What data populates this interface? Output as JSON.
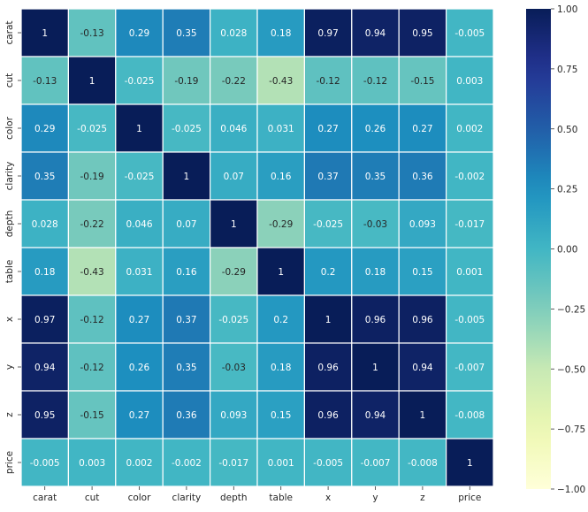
{
  "chart_data": {
    "type": "heatmap",
    "title": "",
    "xlabel": "",
    "ylabel": "",
    "columns": [
      "carat",
      "cut",
      "color",
      "clarity",
      "depth",
      "table",
      "x",
      "y",
      "z",
      "price"
    ],
    "rows": [
      "carat",
      "cut",
      "color",
      "clarity",
      "depth",
      "table",
      "x",
      "y",
      "z",
      "price"
    ],
    "values": [
      [
        "1",
        "-0.13",
        "0.29",
        "0.35",
        "0.028",
        "0.18",
        "0.97",
        "0.94",
        "0.95",
        "-0.005"
      ],
      [
        "-0.13",
        "1",
        "-0.025",
        "-0.19",
        "-0.22",
        "-0.43",
        "-0.12",
        "-0.12",
        "-0.15",
        "0.003"
      ],
      [
        "0.29",
        "-0.025",
        "1",
        "-0.025",
        "0.046",
        "0.031",
        "0.27",
        "0.26",
        "0.27",
        "0.002"
      ],
      [
        "0.35",
        "-0.19",
        "-0.025",
        "1",
        "0.07",
        "0.16",
        "0.37",
        "0.35",
        "0.36",
        "-0.002"
      ],
      [
        "0.028",
        "-0.22",
        "0.046",
        "0.07",
        "1",
        "-0.29",
        "-0.025",
        "-0.03",
        "0.093",
        "-0.017"
      ],
      [
        "0.18",
        "-0.43",
        "0.031",
        "0.16",
        "-0.29",
        "1",
        "0.2",
        "0.18",
        "0.15",
        "0.001"
      ],
      [
        "0.97",
        "-0.12",
        "0.27",
        "0.37",
        "-0.025",
        "0.2",
        "1",
        "0.96",
        "0.96",
        "-0.005"
      ],
      [
        "0.94",
        "-0.12",
        "0.26",
        "0.35",
        "-0.03",
        "0.18",
        "0.96",
        "1",
        "0.94",
        "-0.007"
      ],
      [
        "0.95",
        "-0.15",
        "0.27",
        "0.36",
        "0.093",
        "0.15",
        "0.96",
        "0.94",
        "1",
        "-0.008"
      ],
      [
        "-0.005",
        "0.003",
        "0.002",
        "-0.002",
        "-0.017",
        "0.001",
        "-0.005",
        "-0.007",
        "-0.008",
        "1"
      ]
    ],
    "colorbar": {
      "min": -1,
      "max": 1,
      "ticks": [
        "1.00",
        "0.75",
        "0.50",
        "0.25",
        "0.00",
        "−0.25",
        "−0.50",
        "−0.75",
        "−1.00"
      ],
      "tick_values": [
        1,
        0.75,
        0.5,
        0.25,
        0,
        -0.25,
        -0.5,
        -0.75,
        -1
      ]
    },
    "colormap": "YlGnBu",
    "grid": false,
    "cell_separator_color": "#ffffff"
  }
}
